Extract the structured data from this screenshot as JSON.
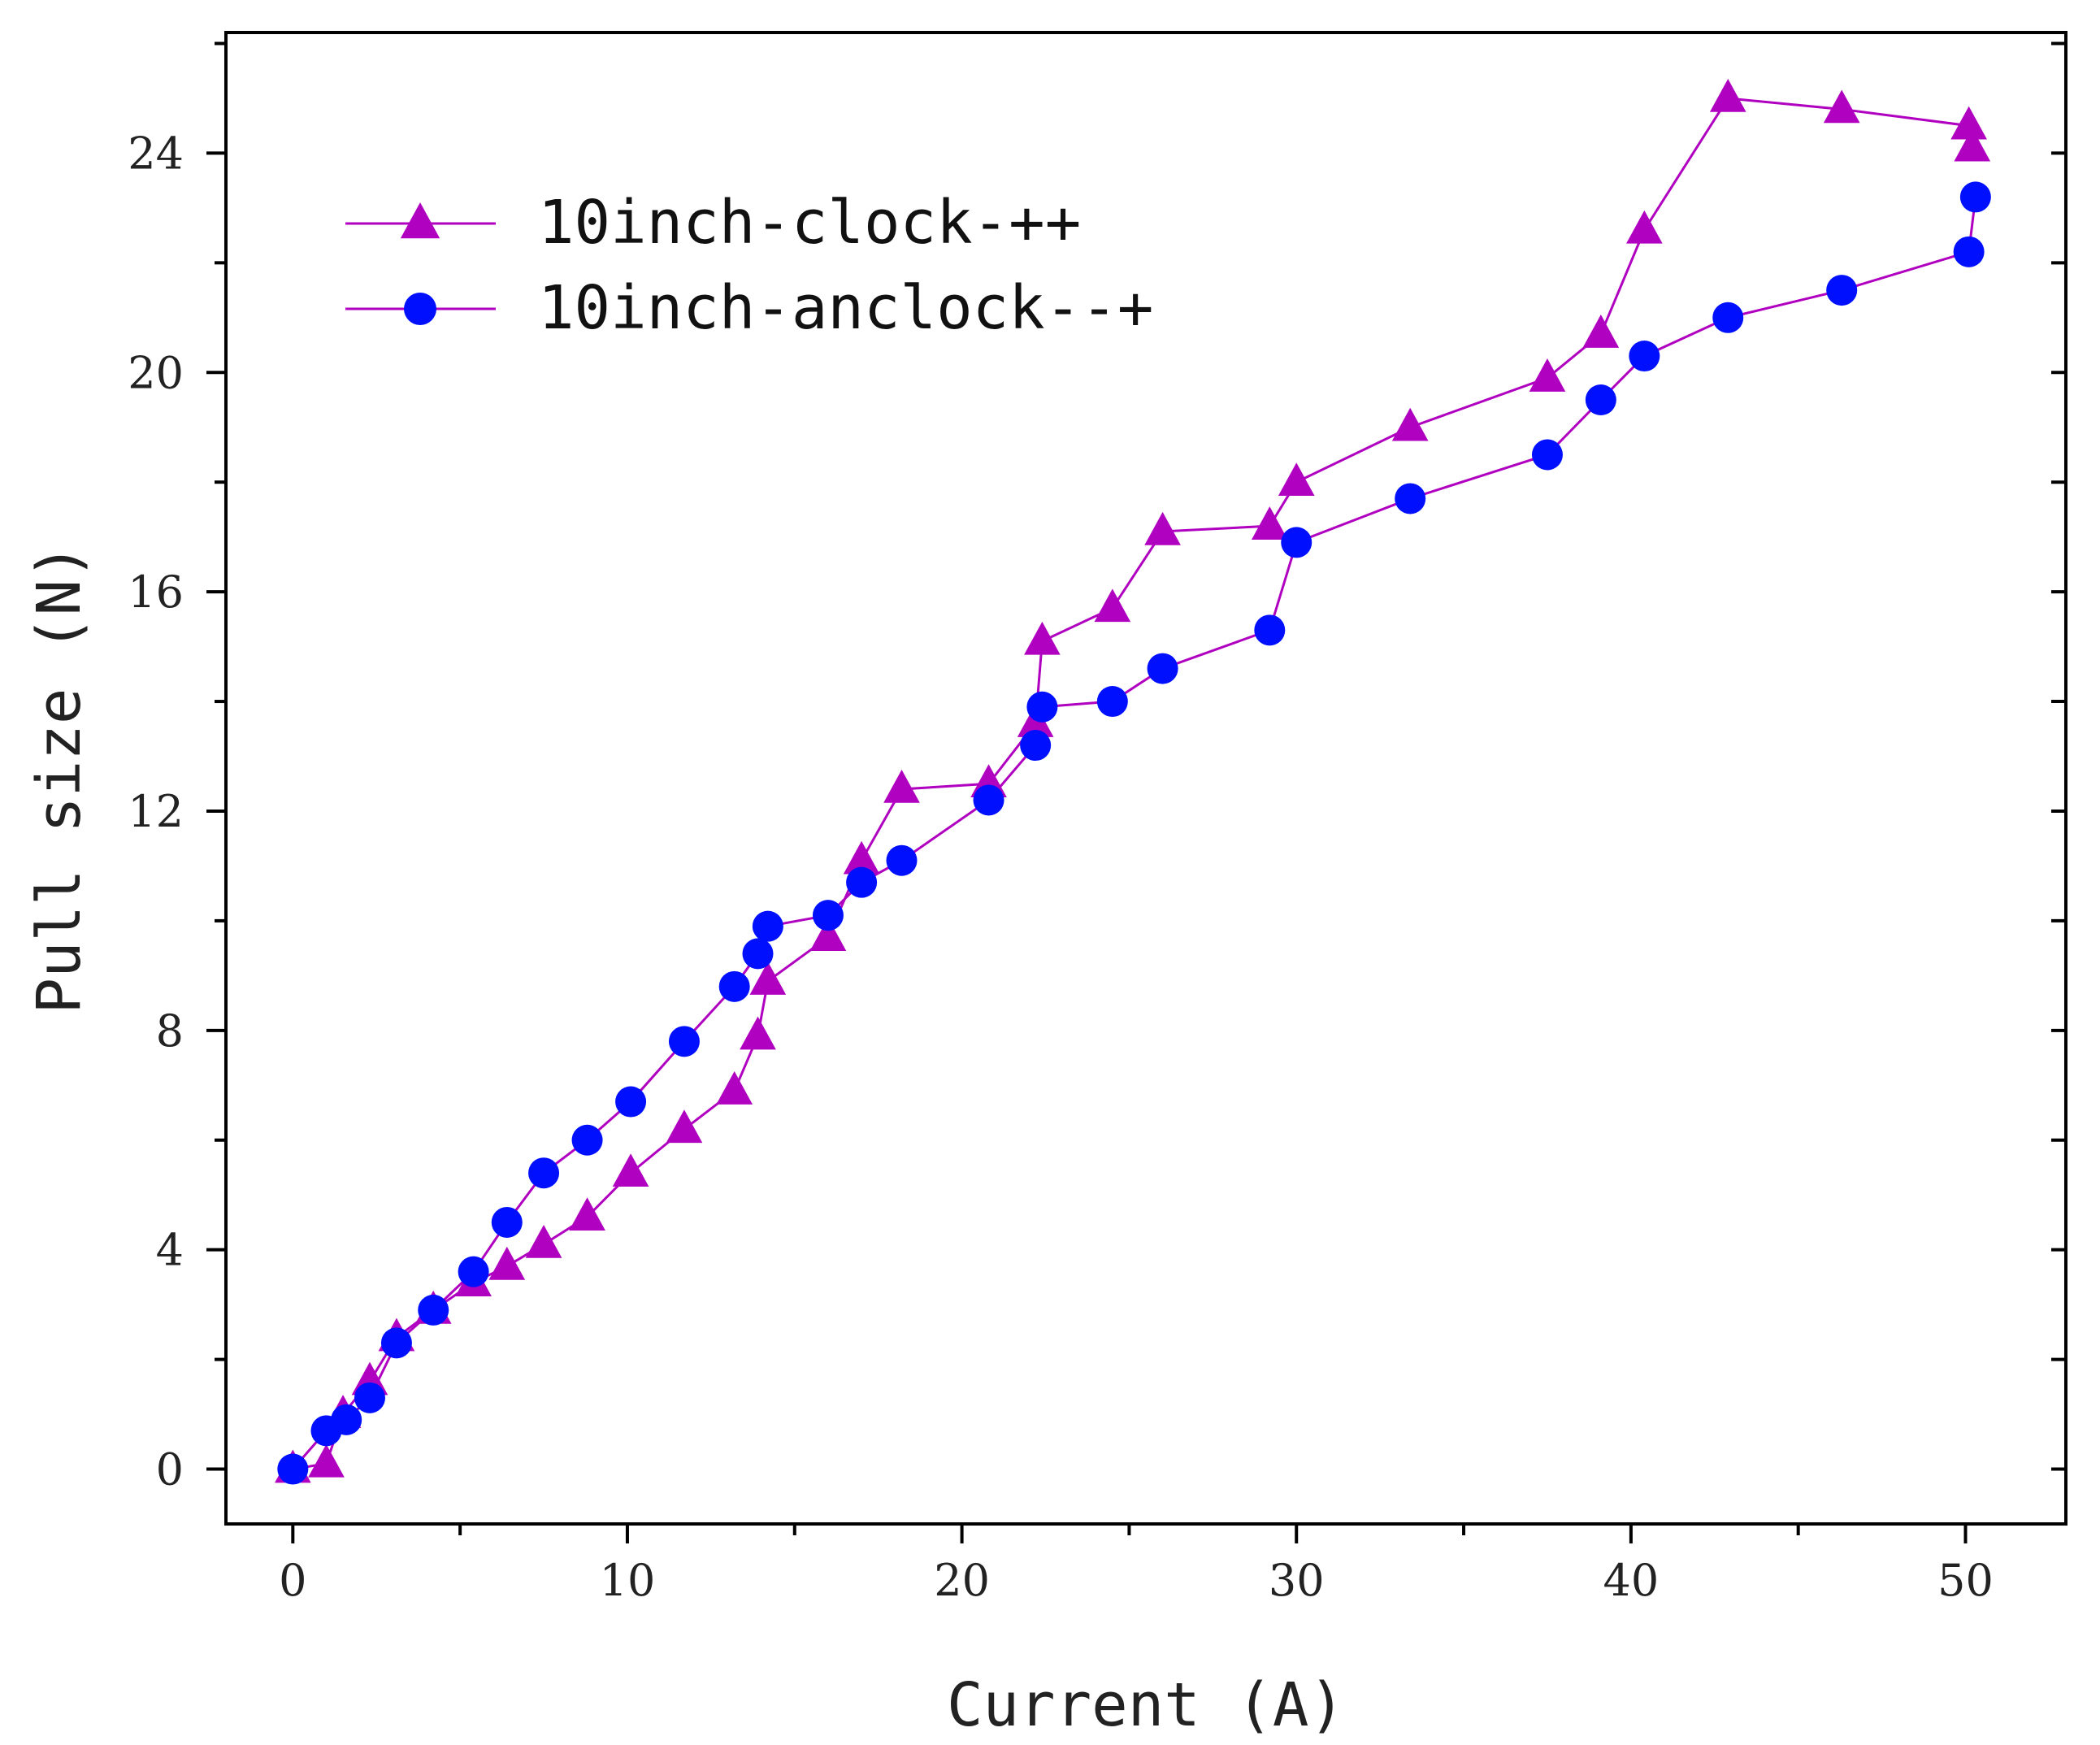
{
  "chart_data": {
    "type": "line",
    "title": "",
    "xlabel": "Current (A)",
    "ylabel": "Pull size (N)",
    "xlim": [
      -2,
      53
    ],
    "ylim": [
      -1,
      26.2
    ],
    "xticks": [
      0,
      10,
      20,
      30,
      40,
      50
    ],
    "yticks": [
      0,
      4,
      8,
      12,
      16,
      20,
      24
    ],
    "grid": false,
    "legend_position": "top-left",
    "colors": {
      "line": "#b000c0",
      "triangle": "#b000c0",
      "circle": "#0010ff",
      "axis": "#000000"
    },
    "series": [
      {
        "name": "10inch-clock-++",
        "marker": "triangle",
        "x": [
          0,
          1,
          1.5,
          2.3,
          3.1,
          4.2,
          5.4,
          6.4,
          7.5,
          8.8,
          10.1,
          11.7,
          13.2,
          13.9,
          14.2,
          16,
          17,
          18.2,
          20.8,
          22.2,
          22.4,
          24.5,
          26,
          29.2,
          30,
          33.4,
          37.5,
          39.1,
          40.4,
          42.9,
          46.3,
          50.1,
          50.2
        ],
        "y": [
          0,
          0.1,
          1,
          1.6,
          2.4,
          2.9,
          3.4,
          3.7,
          4.1,
          4.6,
          5.4,
          6.2,
          6.9,
          7.9,
          8.9,
          9.7,
          11.1,
          12.4,
          12.5,
          13.6,
          15.1,
          15.7,
          17.1,
          17.2,
          18,
          19,
          19.9,
          20.7,
          22.6,
          25,
          24.8,
          24.5,
          24.1
        ]
      },
      {
        "name": "10inch-anclock--+",
        "marker": "circle",
        "x": [
          0,
          1,
          1.6,
          2.3,
          3.1,
          4.2,
          5.4,
          6.4,
          7.5,
          8.8,
          10.1,
          11.7,
          13.2,
          13.9,
          14.2,
          16,
          17,
          18.2,
          20.8,
          22.2,
          22.4,
          24.5,
          26,
          29.2,
          30,
          33.4,
          37.5,
          39.1,
          40.4,
          42.9,
          46.3,
          50.1,
          50.3
        ],
        "y": [
          0,
          0.7,
          0.9,
          1.3,
          2.3,
          2.9,
          3.6,
          4.5,
          5.4,
          6,
          6.7,
          7.8,
          8.8,
          9.4,
          9.9,
          10.1,
          10.7,
          11.1,
          12.2,
          13.2,
          13.9,
          14,
          14.6,
          15.3,
          16.9,
          17.7,
          18.5,
          19.5,
          20.3,
          21,
          21.5,
          22.2,
          23.2
        ]
      }
    ]
  }
}
